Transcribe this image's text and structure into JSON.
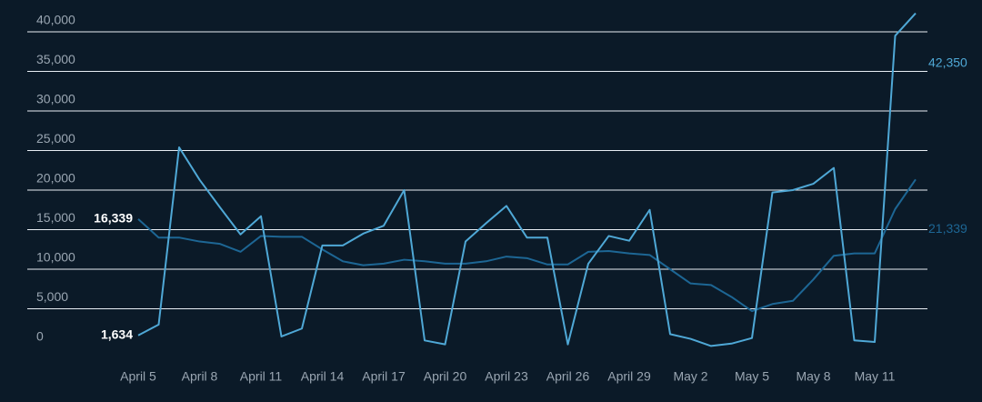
{
  "chart_data": {
    "type": "line",
    "categories": [
      "April 5",
      null,
      null,
      "April 8",
      null,
      null,
      "April 11",
      null,
      null,
      "April 14",
      null,
      null,
      "April 17",
      null,
      null,
      "April 20",
      null,
      null,
      "April 23",
      null,
      null,
      "April 26",
      null,
      null,
      "April 29",
      null,
      null,
      "May 2",
      null,
      null,
      "May 5",
      null,
      null,
      "May 8",
      null,
      null,
      "May 11",
      null,
      null
    ],
    "series": [
      {
        "color": "#4fa8d6",
        "values": [
          1634,
          3000,
          25400,
          21300,
          17800,
          14400,
          16700,
          1500,
          2500,
          13000,
          13000,
          14500,
          15500,
          20000,
          1000,
          500,
          13500,
          15800,
          18000,
          14000,
          14000,
          500,
          10700,
          14200,
          13600,
          17500,
          1800,
          1200,
          300,
          600,
          1300,
          19700,
          20000,
          20800,
          22800,
          1000,
          800,
          39500,
          42350
        ],
        "value_labels": [
          "1,634",
          null,
          null,
          null,
          null,
          null,
          null,
          null,
          null,
          null,
          null,
          null,
          null,
          null,
          null,
          null,
          null,
          null,
          null,
          null,
          null,
          null,
          null,
          null,
          null,
          null,
          null,
          null,
          null,
          null,
          null,
          null,
          null,
          null,
          null,
          null,
          null,
          null,
          "42,350"
        ]
      },
      {
        "color": "#1d6694",
        "values": [
          16339,
          14000,
          14000,
          13500,
          13200,
          12200,
          14200,
          14100,
          14100,
          12500,
          11000,
          10500,
          10700,
          11200,
          11000,
          10700,
          10700,
          11000,
          11600,
          11400,
          10600,
          10600,
          12200,
          12300,
          12000,
          11800,
          10000,
          8200,
          8000,
          6500,
          4700,
          5600,
          6000,
          8700,
          11700,
          12000,
          12000,
          17600,
          21339
        ],
        "value_labels": [
          "16,339",
          null,
          null,
          null,
          null,
          null,
          null,
          null,
          null,
          null,
          null,
          null,
          null,
          null,
          null,
          null,
          null,
          null,
          null,
          null,
          null,
          null,
          null,
          null,
          null,
          null,
          null,
          null,
          null,
          null,
          null,
          null,
          null,
          null,
          null,
          null,
          null,
          null,
          "21,339"
        ]
      }
    ],
    "ylim": [
      0,
      43000
    ],
    "yticks": [
      0,
      {
        "value": 5000,
        "label": "5,000"
      },
      {
        "value": 10000,
        "label": "10,000"
      },
      {
        "value": 15000,
        "label": "15,000"
      },
      {
        "value": 20000,
        "label": "20,000"
      },
      {
        "value": 25000,
        "label": "25,000"
      },
      {
        "value": 30000,
        "label": "30,000"
      },
      {
        "value": 35000,
        "label": "35,000"
      },
      {
        "value": 40000,
        "label": "40,000"
      }
    ],
    "grid": true
  }
}
